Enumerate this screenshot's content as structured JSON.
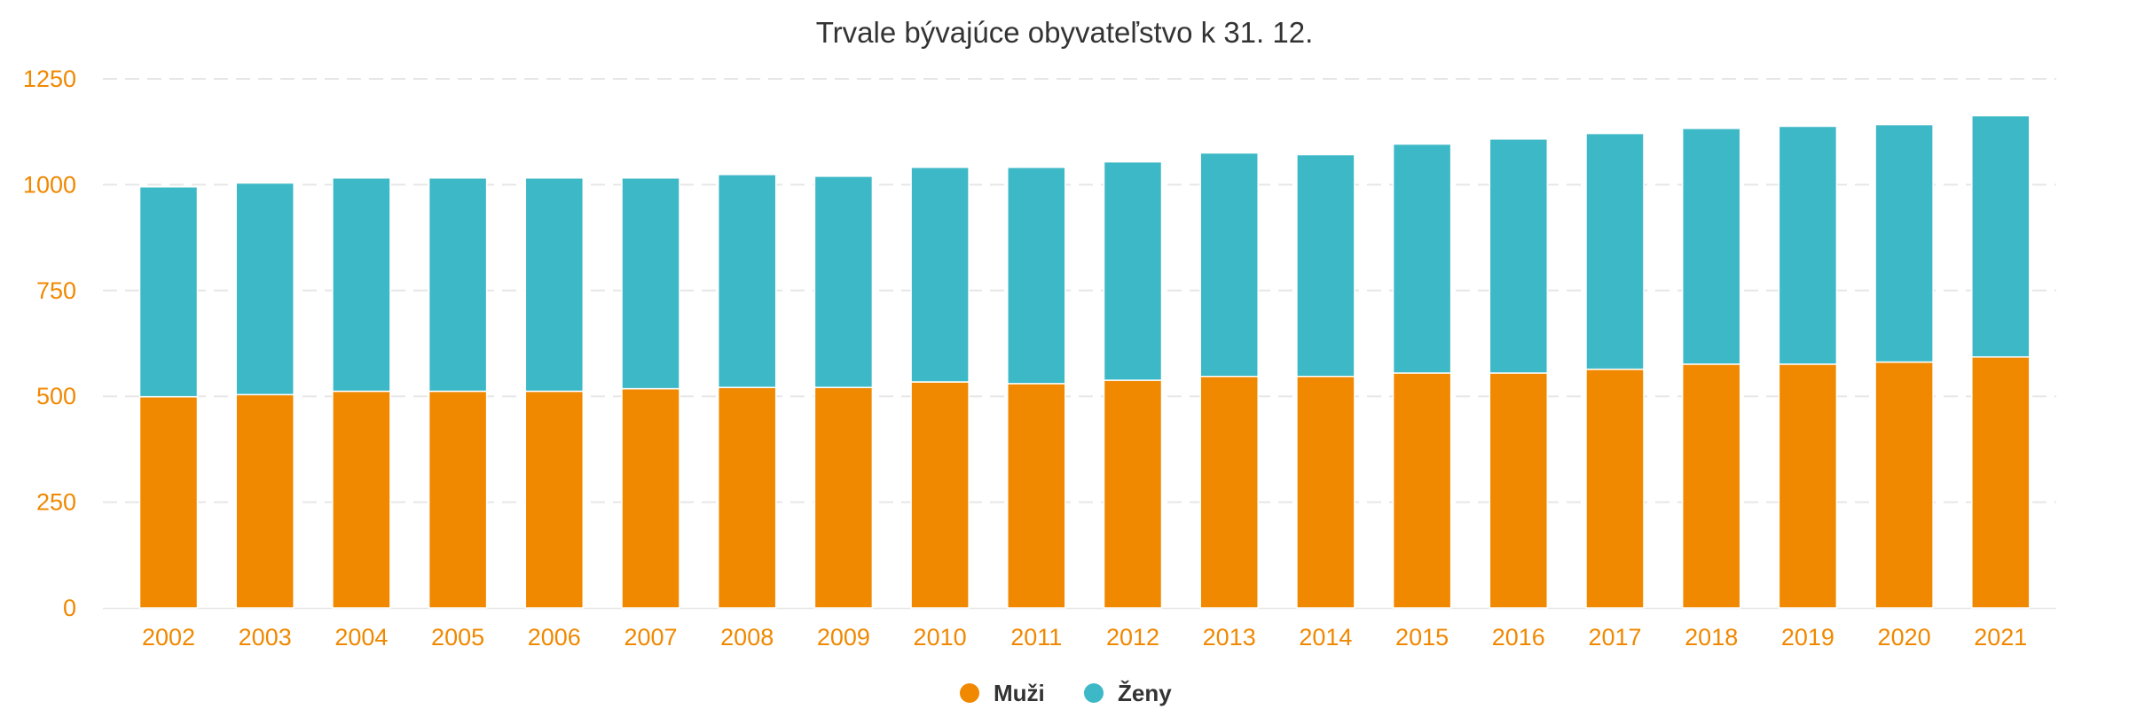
{
  "chart_data": {
    "type": "bar",
    "stacked": true,
    "title": "Trvale bývajúce obyvateľstvo k 31. 12.",
    "xlabel": "",
    "ylabel": "",
    "ylim": [
      0,
      1250
    ],
    "yticks": [
      0,
      250,
      500,
      750,
      1000,
      1250
    ],
    "grid": true,
    "legend_position": "bottom-center",
    "categories": [
      "2002",
      "2003",
      "2004",
      "2005",
      "2006",
      "2007",
      "2008",
      "2009",
      "2010",
      "2011",
      "2012",
      "2013",
      "2014",
      "2015",
      "2016",
      "2017",
      "2018",
      "2019",
      "2020",
      "2021"
    ],
    "series": [
      {
        "name": "Muži",
        "color": "#f08800",
        "values": [
          499,
          504,
          512,
          512,
          512,
          518,
          521,
          521,
          534,
          530,
          538,
          547,
          547,
          555,
          555,
          564,
          576,
          576,
          581,
          593
        ]
      },
      {
        "name": "Ženy",
        "color": "#3db8c6",
        "values": [
          496,
          500,
          504,
          504,
          504,
          498,
          503,
          499,
          507,
          511,
          516,
          528,
          524,
          541,
          553,
          557,
          557,
          562,
          561,
          570
        ]
      }
    ]
  }
}
